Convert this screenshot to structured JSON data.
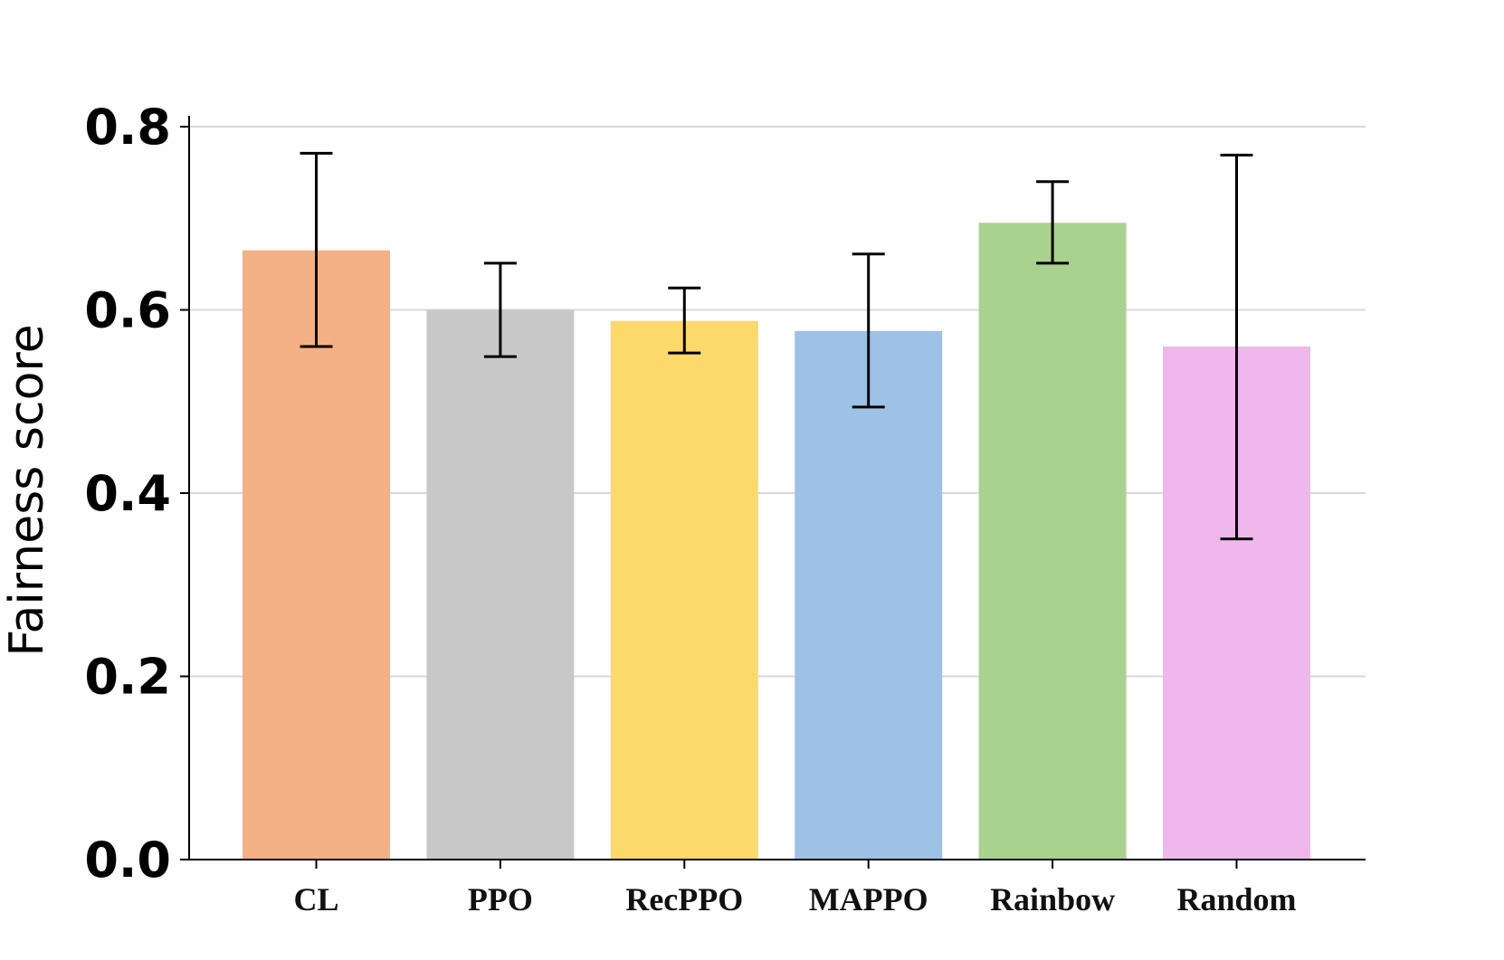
{
  "chart_data": {
    "type": "bar",
    "title": "",
    "xlabel": "",
    "ylabel": "Fairness score",
    "ylim": [
      0,
      0.8
    ],
    "yticks": [
      0.0,
      0.2,
      0.4,
      0.6,
      0.8
    ],
    "ytick_labels": [
      "0.0",
      "0.2",
      "0.4",
      "0.6",
      "0.8"
    ],
    "grid": "horizontal",
    "categories": [
      "CL",
      "PPO",
      "RecPPO",
      "MAPPO",
      "Rainbow",
      "Random"
    ],
    "values": [
      0.665,
      0.6,
      0.588,
      0.577,
      0.695,
      0.56
    ],
    "error_low": [
      0.56,
      0.549,
      0.553,
      0.494,
      0.651,
      0.35
    ],
    "error_high": [
      0.771,
      0.651,
      0.624,
      0.661,
      0.74,
      0.769
    ],
    "colors": [
      "#f3b185",
      "#c8c8c8",
      "#fdd86b",
      "#9dc2e6",
      "#a8d28e",
      "#efb7ec"
    ]
  }
}
